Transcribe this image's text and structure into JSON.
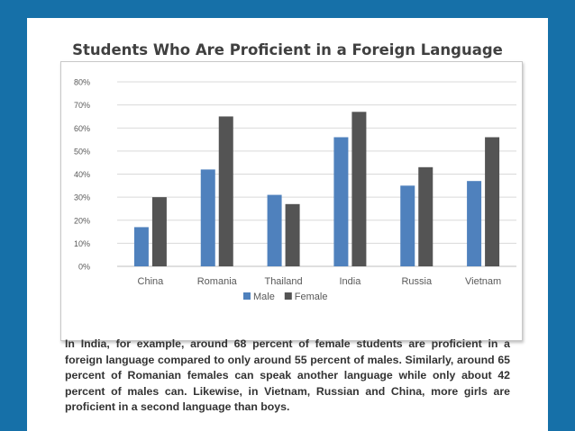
{
  "chart_data": {
    "type": "bar",
    "title": "Students Who Are Proficient in a Foreign Language",
    "categories": [
      "China",
      "Romania",
      "Thailand",
      "India",
      "Russia",
      "Vietnam"
    ],
    "series": [
      {
        "name": "Male",
        "color": "#4f81bd",
        "values": [
          17,
          42,
          31,
          56,
          35,
          37
        ]
      },
      {
        "name": "Female",
        "color": "#545454",
        "values": [
          30,
          65,
          27,
          67,
          43,
          56
        ]
      }
    ],
    "ylim": [
      0,
      80
    ],
    "yticks": [
      "0%",
      "10%",
      "20%",
      "30%",
      "40%",
      "50%",
      "60%",
      "70%",
      "80%"
    ],
    "grid": true,
    "legend": "bottom-center"
  },
  "paragraph": "In India, for example, around 68 percent of female students are proficient in a foreign language compared to only around 55 percent of males. Similarly, around 65 percent of Romanian females can speak another language while only about 42 percent of males can. Likewise, in Vietnam, Russian and China, more girls are proficient in a second language than boys."
}
